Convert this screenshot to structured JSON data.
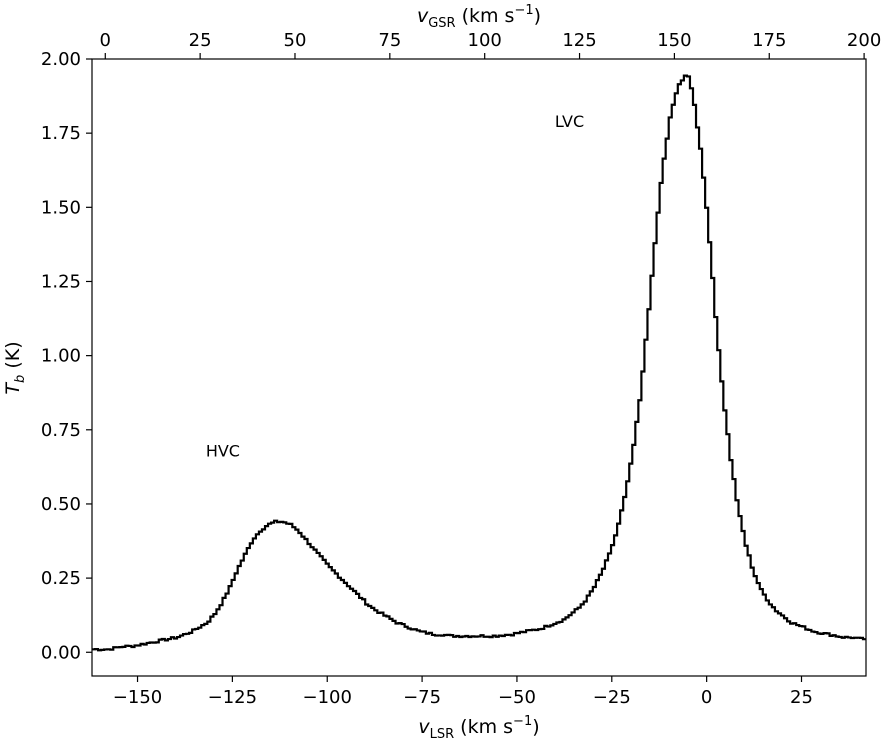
{
  "chart_data": {
    "type": "line",
    "drawstyle": "steps",
    "xlabel": {
      "var": "v",
      "sub": "LSR",
      "unit_pre": " (km s",
      "sup": "−1",
      "unit_post": ")"
    },
    "x2label": {
      "var": "v",
      "sub": "GSR",
      "unit_pre": " (km s",
      "sup": "−1",
      "unit_post": ")"
    },
    "ylabel": {
      "var": "T",
      "sub": "b",
      "unit": " (K)"
    },
    "xlim": [
      -162,
      42
    ],
    "ylim": [
      -0.08,
      2.0
    ],
    "x2lim": [
      -3.5,
      200.5
    ],
    "xticks": [
      -150,
      -125,
      -100,
      -75,
      -50,
      -25,
      0,
      25
    ],
    "xtick_labels": [
      "−150",
      "−125",
      "−100",
      "−75",
      "−50",
      "−25",
      "0",
      "25"
    ],
    "x2ticks": [
      0,
      25,
      50,
      75,
      100,
      125,
      150,
      175,
      200
    ],
    "x2tick_labels": [
      "0",
      "25",
      "50",
      "75",
      "100",
      "125",
      "150",
      "175",
      "200"
    ],
    "yticks": [
      0,
      0.25,
      0.5,
      0.75,
      1.0,
      1.25,
      1.5,
      1.75,
      2.0
    ],
    "ytick_labels": [
      "0.00",
      "0.25",
      "0.50",
      "0.75",
      "1.00",
      "1.25",
      "1.50",
      "1.75",
      "2.00"
    ],
    "grid": false,
    "legend": "none",
    "annotations": [
      {
        "text": "HVC",
        "x": -132,
        "y": 0.66
      },
      {
        "text": "LVC",
        "x": -40,
        "y": 1.77
      }
    ],
    "series": [
      {
        "color": "#000000",
        "x": [
          -162,
          -160,
          -158,
          -156,
          -154,
          -152,
          -150,
          -148,
          -146,
          -144,
          -142,
          -140,
          -138,
          -136,
          -134,
          -132,
          -130,
          -128,
          -126,
          -124,
          -122,
          -120,
          -118,
          -116,
          -114,
          -112,
          -110,
          -108,
          -106,
          -104,
          -102,
          -100,
          -98,
          -96,
          -94,
          -92,
          -90,
          -88,
          -86,
          -84,
          -82,
          -80,
          -78,
          -76,
          -74,
          -72,
          -70,
          -68,
          -66,
          -64,
          -62,
          -60,
          -58,
          -56,
          -54,
          -52,
          -50,
          -48,
          -46,
          -44,
          -42,
          -40,
          -38,
          -36,
          -34,
          -32,
          -30,
          -28,
          -26,
          -24,
          -22,
          -20,
          -18,
          -16,
          -14,
          -12,
          -10,
          -8,
          -6,
          -5,
          -4,
          -2,
          0,
          2,
          4,
          6,
          8,
          10,
          12,
          14,
          16,
          18,
          20,
          22,
          24,
          26,
          28,
          30,
          32,
          34,
          36,
          38,
          40,
          42
        ],
        "y": [
          0.01,
          0.01,
          0.01,
          0.015,
          0.02,
          0.02,
          0.025,
          0.03,
          0.035,
          0.04,
          0.045,
          0.05,
          0.06,
          0.07,
          0.085,
          0.1,
          0.13,
          0.17,
          0.22,
          0.28,
          0.33,
          0.38,
          0.41,
          0.43,
          0.44,
          0.44,
          0.43,
          0.41,
          0.38,
          0.35,
          0.32,
          0.29,
          0.265,
          0.24,
          0.215,
          0.19,
          0.165,
          0.145,
          0.13,
          0.115,
          0.1,
          0.09,
          0.08,
          0.07,
          0.065,
          0.06,
          0.06,
          0.055,
          0.055,
          0.055,
          0.055,
          0.055,
          0.055,
          0.055,
          0.058,
          0.06,
          0.065,
          0.07,
          0.075,
          0.08,
          0.09,
          0.1,
          0.11,
          0.13,
          0.15,
          0.18,
          0.22,
          0.27,
          0.33,
          0.41,
          0.52,
          0.66,
          0.85,
          1.1,
          1.38,
          1.63,
          1.8,
          1.91,
          1.94,
          1.94,
          1.88,
          1.7,
          1.45,
          1.13,
          0.86,
          0.65,
          0.48,
          0.36,
          0.27,
          0.21,
          0.17,
          0.14,
          0.12,
          0.1,
          0.09,
          0.08,
          0.07,
          0.065,
          0.06,
          0.055,
          0.05,
          0.05,
          0.045,
          0.045
        ]
      }
    ]
  }
}
